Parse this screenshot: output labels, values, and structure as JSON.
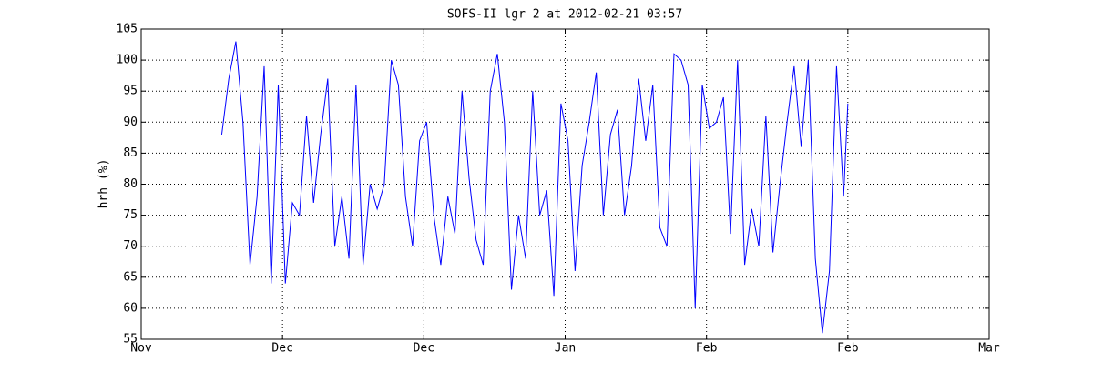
{
  "chart_data": {
    "type": "line",
    "title": "SOFS-II lgr 2 at 2012-02-21 03:57",
    "ylabel": "hrh (%)",
    "color": "#0000ff",
    "grid": true,
    "xlim": [
      0,
      120
    ],
    "xticks": [
      {
        "value": 0,
        "label": "Nov"
      },
      {
        "value": 20,
        "label": "Dec"
      },
      {
        "value": 40,
        "label": "Dec"
      },
      {
        "value": 60,
        "label": "Jan"
      },
      {
        "value": 80,
        "label": "Feb"
      },
      {
        "value": 100,
        "label": "Feb"
      },
      {
        "value": 120,
        "label": "Mar"
      }
    ],
    "ylim": [
      55,
      105
    ],
    "yticks": [
      55,
      60,
      65,
      70,
      75,
      80,
      85,
      90,
      95,
      100,
      105
    ],
    "x": [
      11.4,
      12.4,
      13.4,
      14.4,
      15.4,
      16.4,
      17.4,
      18.4,
      19.4,
      20.4,
      21.4,
      22.4,
      23.4,
      24.4,
      25.4,
      26.4,
      27.4,
      28.4,
      29.4,
      30.4,
      31.4,
      32.4,
      33.4,
      34.4,
      35.4,
      36.4,
      37.4,
      38.4,
      39.4,
      40.4,
      41.4,
      42.4,
      43.4,
      44.4,
      45.4,
      46.4,
      47.4,
      48.4,
      49.4,
      50.4,
      51.4,
      52.4,
      53.4,
      54.4,
      55.4,
      56.4,
      57.4,
      58.4,
      59.4,
      60.4,
      61.4,
      62.4,
      63.4,
      64.4,
      65.4,
      66.4,
      67.4,
      68.4,
      69.4,
      70.4,
      71.4,
      72.4,
      73.4,
      74.4,
      75.4,
      76.4,
      77.4,
      78.4,
      79.4,
      80.4,
      81.4,
      82.4,
      83.4,
      84.4,
      85.4,
      86.4,
      87.4,
      88.4,
      89.4,
      90.4,
      91.4,
      92.4,
      93.4,
      94.4,
      95.4,
      96.4,
      97.4,
      98.4,
      99.4,
      100.0
    ],
    "values": [
      88,
      97,
      103,
      90,
      67,
      78,
      99,
      64,
      96,
      64,
      77,
      75,
      91,
      77,
      88,
      97,
      70,
      78,
      68,
      96,
      67,
      80,
      76,
      80,
      100,
      96,
      78,
      70,
      87,
      90,
      75,
      67,
      78,
      72,
      95,
      81,
      71,
      67,
      95,
      101,
      90,
      63,
      75,
      68,
      95,
      75,
      79,
      62,
      93,
      87,
      66,
      83,
      90,
      98,
      75,
      88,
      92,
      75,
      83,
      97,
      87,
      96,
      73,
      70,
      101,
      100,
      96,
      60,
      96,
      89,
      90,
      94,
      72,
      100,
      67,
      76,
      70,
      91,
      69,
      80,
      90,
      99,
      86,
      100,
      68,
      56,
      66,
      99,
      78,
      93
    ]
  }
}
